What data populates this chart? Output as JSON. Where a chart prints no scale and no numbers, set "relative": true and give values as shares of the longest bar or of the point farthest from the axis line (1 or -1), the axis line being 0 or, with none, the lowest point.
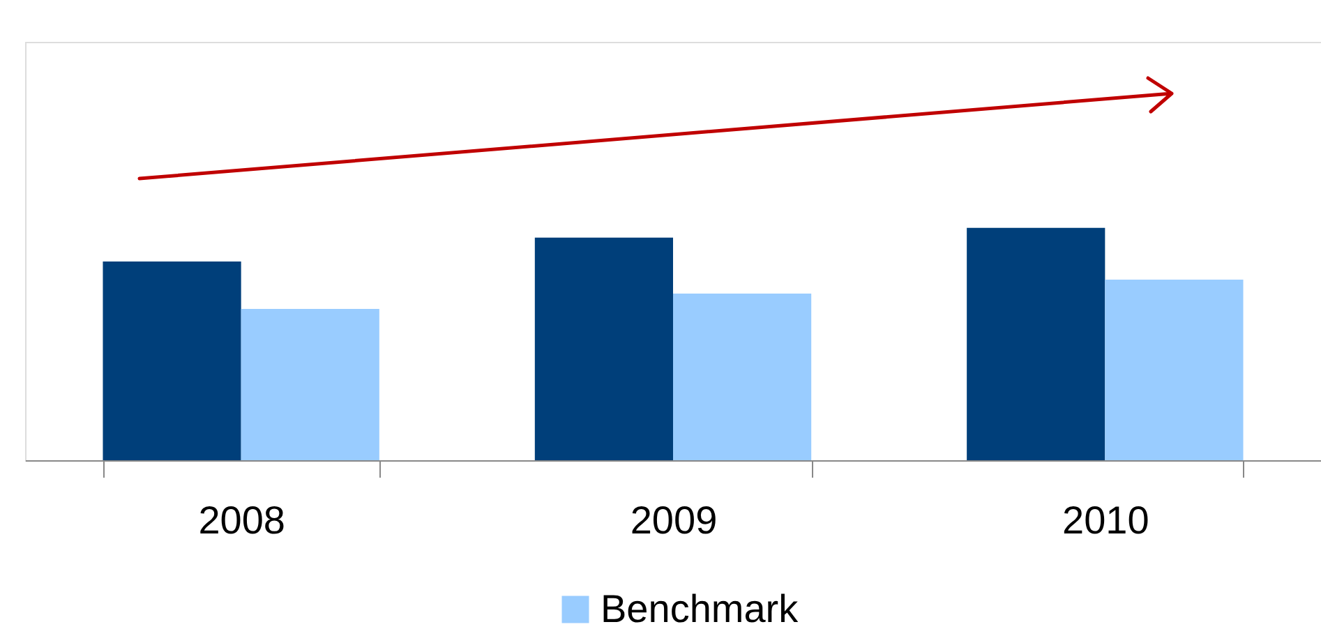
{
  "chart_data": {
    "type": "bar",
    "relative": true,
    "categories": [
      "2008",
      "2009",
      "2010"
    ],
    "series": [
      {
        "color": "#003f7a",
        "values": [
          0.855,
          0.958,
          1
        ]
      },
      {
        "name": "Benchmark",
        "color": "#99ccff",
        "values": [
          0.651,
          0.717,
          0.777
        ]
      }
    ],
    "legend": "bottom",
    "grid": false
  }
}
